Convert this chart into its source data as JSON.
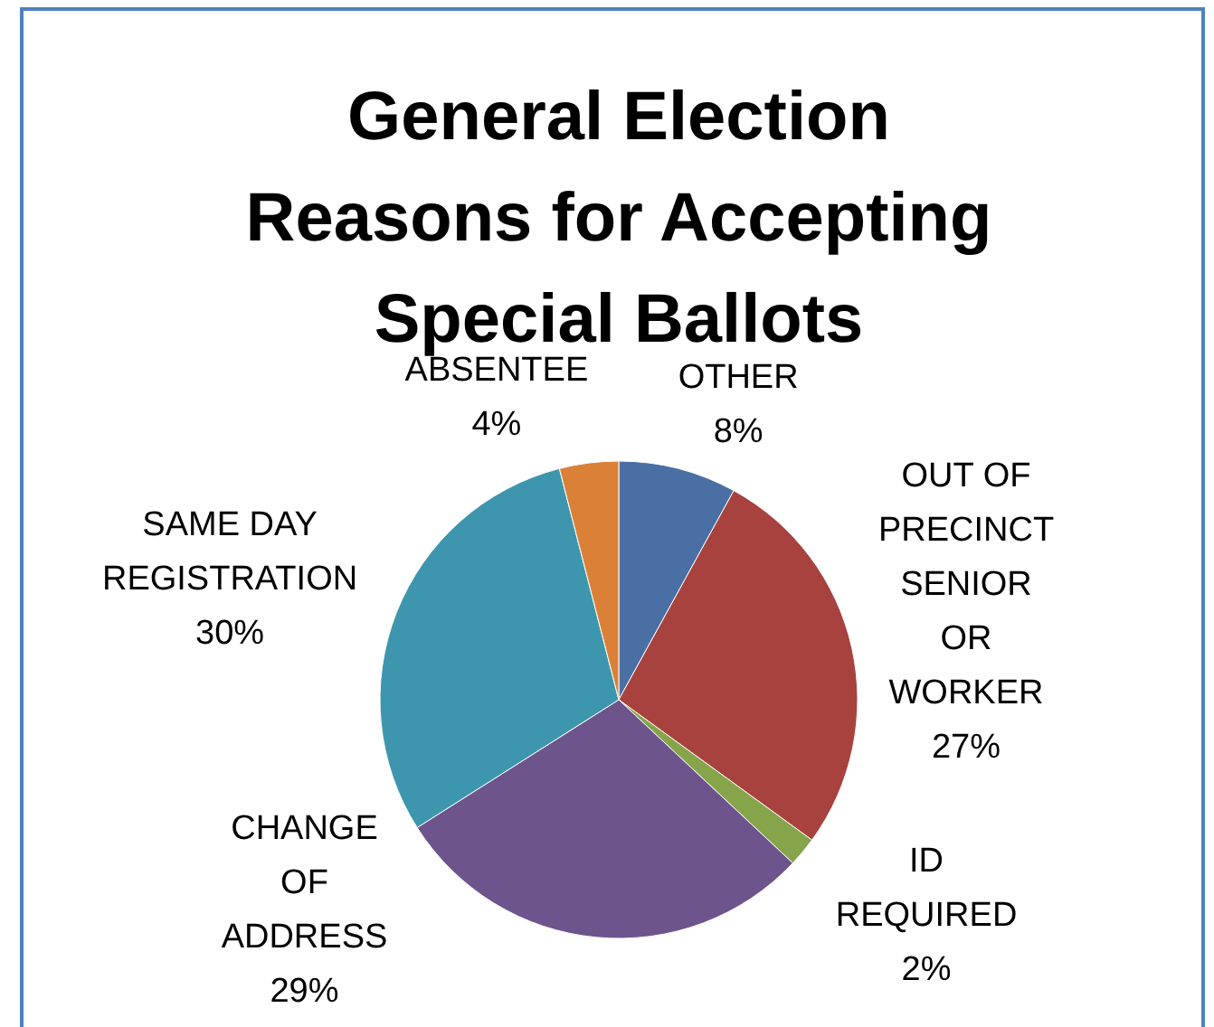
{
  "chart_data": {
    "type": "pie",
    "title": "General Election Reasons for Accepting Special Ballots",
    "categories": [
      "OTHER",
      "OUT OF PRECINCT SENIOR OR WORKER",
      "ID REQUIRED",
      "CHANGE OF ADDRESS",
      "SAME DAY REGISTRATION",
      "ABSENTEE"
    ],
    "values": [
      8,
      27,
      2,
      29,
      30,
      4
    ],
    "value_labels": [
      "8%",
      "27%",
      "2%",
      "29%",
      "30%",
      "4%"
    ],
    "colors": [
      "#4a6fa5",
      "#a8423f",
      "#86a44a",
      "#6e548d",
      "#3d96ae",
      "#da8137"
    ]
  }
}
